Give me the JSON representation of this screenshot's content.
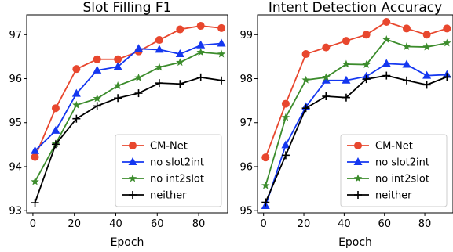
{
  "chart_data": [
    {
      "type": "line",
      "title": "Slot Filling F1",
      "xlabel": "Epoch",
      "ylabel": "",
      "xlim": [
        -3,
        94
      ],
      "ylim": [
        92.95,
        97.45
      ],
      "xticks": [
        0,
        20,
        40,
        60,
        80
      ],
      "yticks": [
        93,
        94,
        95,
        96,
        97
      ],
      "legend_position": "lower right",
      "grid": false,
      "series": [
        {
          "name": "CM-Net",
          "color": "#e8472e",
          "marker": "circle",
          "x": [
            1,
            11,
            21,
            31,
            41,
            51,
            61,
            71,
            81,
            91
          ],
          "y": [
            94.22,
            95.33,
            96.22,
            96.44,
            96.44,
            96.62,
            96.88,
            97.12,
            97.2,
            97.15
          ]
        },
        {
          "name": "no slot2int",
          "color": "#1437f0",
          "marker": "triangle",
          "x": [
            1,
            11,
            21,
            31,
            41,
            51,
            61,
            71,
            81,
            91
          ],
          "y": [
            94.36,
            94.82,
            95.66,
            96.19,
            96.27,
            96.68,
            96.66,
            96.56,
            96.76,
            96.8
          ]
        },
        {
          "name": "no int2slot",
          "color": "#3c8c2c",
          "marker": "star",
          "x": [
            1,
            11,
            21,
            31,
            41,
            51,
            61,
            71,
            81,
            91
          ],
          "y": [
            93.66,
            94.52,
            95.4,
            95.55,
            95.84,
            96.02,
            96.26,
            96.37,
            96.6,
            96.56
          ]
        },
        {
          "name": "neither",
          "color": "#000000",
          "marker": "plus",
          "x": [
            1,
            11,
            21,
            31,
            41,
            51,
            61,
            71,
            81,
            91
          ],
          "y": [
            93.18,
            94.51,
            95.09,
            95.38,
            95.56,
            95.67,
            95.9,
            95.88,
            96.03,
            95.96
          ]
        }
      ]
    },
    {
      "type": "line",
      "title": "Intent Detection Accuracy",
      "xlabel": "Epoch",
      "ylabel": "",
      "xlim": [
        -3,
        94
      ],
      "ylim": [
        94.95,
        99.45
      ],
      "xticks": [
        0,
        20,
        40,
        60,
        80
      ],
      "yticks": [
        95,
        96,
        97,
        98,
        99
      ],
      "legend_position": "lower right",
      "grid": false,
      "series": [
        {
          "name": "CM-Net",
          "color": "#e8472e",
          "marker": "circle",
          "x": [
            1,
            11,
            21,
            31,
            41,
            51,
            61,
            71,
            81,
            91
          ],
          "y": [
            96.21,
            97.43,
            98.56,
            98.71,
            98.86,
            99.0,
            99.29,
            99.14,
            99.0,
            99.14
          ]
        },
        {
          "name": "no slot2int",
          "color": "#1437f0",
          "marker": "triangle",
          "x": [
            1,
            11,
            21,
            31,
            41,
            51,
            61,
            71,
            81,
            91
          ],
          "y": [
            95.11,
            96.49,
            97.36,
            97.96,
            97.96,
            98.05,
            98.34,
            98.32,
            98.07,
            98.09
          ]
        },
        {
          "name": "no int2slot",
          "color": "#3c8c2c",
          "marker": "star",
          "x": [
            1,
            11,
            21,
            31,
            41,
            51,
            61,
            71,
            81,
            91
          ],
          "y": [
            95.57,
            97.12,
            97.97,
            98.03,
            98.33,
            98.32,
            98.89,
            98.73,
            98.72,
            98.81
          ]
        },
        {
          "name": "neither",
          "color": "#000000",
          "marker": "plus",
          "x": [
            1,
            11,
            21,
            31,
            41,
            51,
            61,
            71,
            81,
            91
          ],
          "y": [
            95.19,
            96.26,
            97.33,
            97.6,
            97.57,
            97.99,
            98.07,
            97.96,
            97.86,
            98.04
          ]
        }
      ]
    }
  ]
}
